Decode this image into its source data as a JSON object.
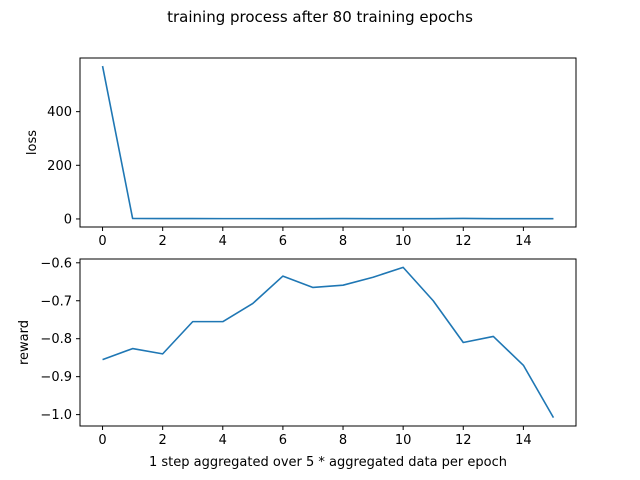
{
  "suptitle": "training process after 80 training epochs",
  "chart_data": [
    {
      "type": "line",
      "title": "",
      "xlabel": "",
      "ylabel": "loss",
      "xlim": [
        -0.75,
        15.75
      ],
      "ylim": [
        -30,
        600
      ],
      "xticks": [
        0,
        2,
        4,
        6,
        8,
        10,
        12,
        14
      ],
      "yticks": [
        0,
        200,
        400
      ],
      "grid": false,
      "series": [
        {
          "color": "#1f77b4",
          "x": [
            0,
            1,
            2,
            3,
            4,
            5,
            6,
            7,
            8,
            9,
            10,
            11,
            12,
            13,
            14,
            15
          ],
          "y": [
            570,
            2,
            1.5,
            1.5,
            1.2,
            1.2,
            1.0,
            1.0,
            1.5,
            1.0,
            1.0,
            1.0,
            2.0,
            1.0,
            1.0,
            1.0
          ]
        }
      ]
    },
    {
      "type": "line",
      "title": "",
      "xlabel": "1 step aggregated over 5 * aggregated data per epoch",
      "ylabel": "reward",
      "xlim": [
        -0.75,
        15.75
      ],
      "ylim": [
        -1.03,
        -0.59
      ],
      "xticks": [
        0,
        2,
        4,
        6,
        8,
        10,
        12,
        14
      ],
      "yticks": [
        -1.0,
        -0.9,
        -0.8,
        -0.7,
        -0.6
      ],
      "grid": false,
      "series": [
        {
          "color": "#1f77b4",
          "x": [
            0,
            1,
            2,
            3,
            4,
            5,
            6,
            7,
            8,
            9,
            10,
            11,
            12,
            13,
            14,
            15
          ],
          "y": [
            -0.855,
            -0.826,
            -0.84,
            -0.755,
            -0.755,
            -0.707,
            -0.635,
            -0.665,
            -0.659,
            -0.638,
            -0.612,
            -0.7,
            -0.81,
            -0.794,
            -0.87,
            -1.008
          ]
        }
      ]
    }
  ]
}
